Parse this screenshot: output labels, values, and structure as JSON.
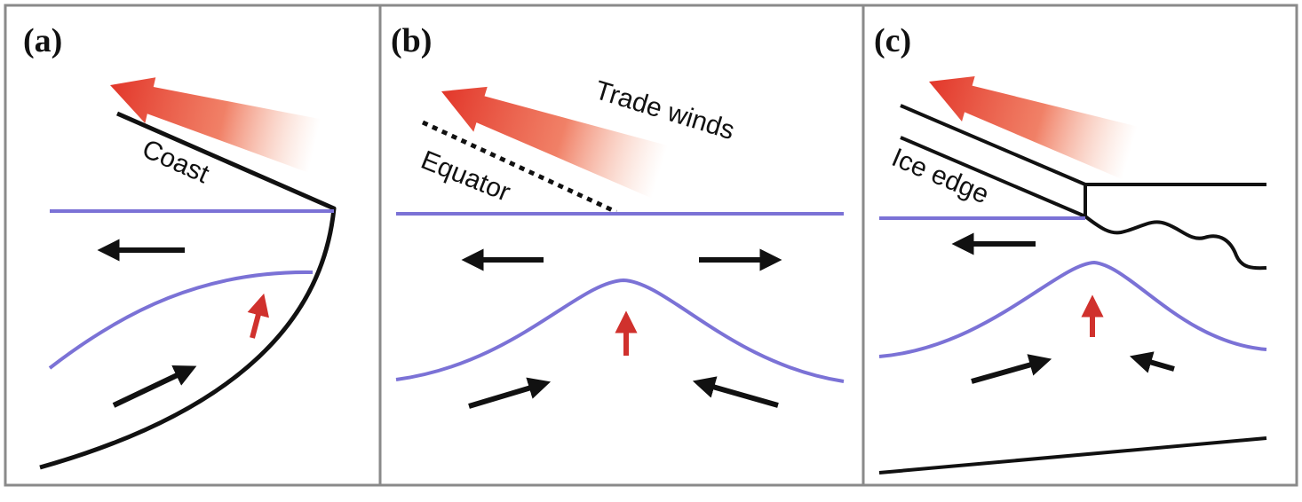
{
  "figure": {
    "colors": {
      "panel_border": "#8a8a8a",
      "outline": "#111111",
      "water_surface": "#7b72d6",
      "thermocline": "#7b72d6",
      "current_arrow": "#111111",
      "upwelling_arrow": "#d0312d",
      "wind_arrow_head": "#e2362a",
      "wind_arrow_tail": "#f6b59a"
    },
    "panels": [
      {
        "id": "a",
        "letter": "(a)",
        "labels": [
          {
            "id": "coast",
            "text": "Coast"
          }
        ]
      },
      {
        "id": "b",
        "letter": "(b)",
        "labels": [
          {
            "id": "trade-winds",
            "text": "Trade winds"
          },
          {
            "id": "equator",
            "text": "Equator"
          }
        ]
      },
      {
        "id": "c",
        "letter": "(c)",
        "labels": [
          {
            "id": "ice-edge",
            "text": "Ice edge"
          }
        ]
      }
    ]
  }
}
